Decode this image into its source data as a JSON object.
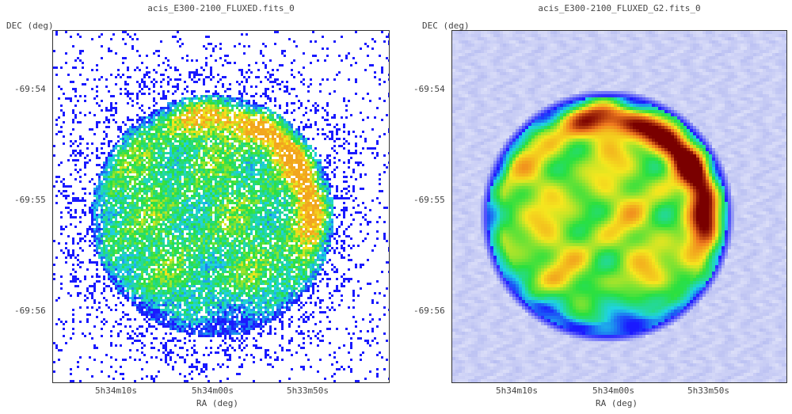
{
  "panels": [
    {
      "title": "acis_E300-2100_FLUXED.fits_0",
      "ylabel": "DEC (deg)",
      "xlabel": "RA (deg)",
      "yticks": [
        "-69:54",
        "-69:55",
        "-69:56"
      ],
      "xticks": [
        "5h34m10s",
        "5h34m00s",
        "5h33m50s"
      ],
      "style": "binned-counts"
    },
    {
      "title": "acis_E300-2100_FLUXED_G2.fits_0",
      "ylabel": "DEC (deg)",
      "xlabel": "RA (deg)",
      "yticks": [
        "-69:54",
        "-69:55",
        "-69:56"
      ],
      "xticks": [
        "5h34m10s",
        "5h34m00s",
        "5h33m50s"
      ],
      "style": "smoothed"
    }
  ],
  "colors": {
    "low": "#1a1aff",
    "mid_low": "#1fd2e6",
    "mid": "#29e040",
    "mid_high": "#f5e61e",
    "high": "#f07a1e",
    "peak": "#7a0000",
    "background_smooth": "#b8bef2",
    "frame": "#333333"
  }
}
